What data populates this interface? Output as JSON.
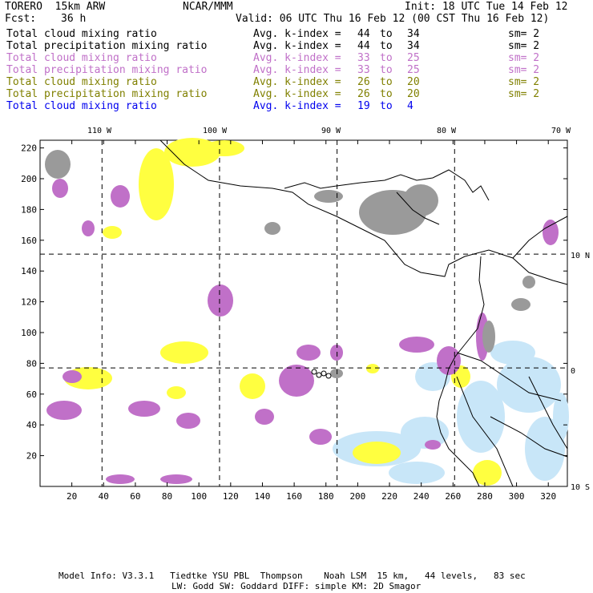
{
  "header": {
    "model": "TORERO  15km ARW",
    "center": "NCAR/MMM",
    "init": "Init: 18 UTC Tue 14 Feb 12",
    "fcst_label": "Fcst:",
    "fcst_value": "36 h",
    "valid": "Valid: 06 UTC Thu 16 Feb 12 (00 CST Thu 16 Feb 12)"
  },
  "legend": [
    {
      "field": "Total cloud mixing ratio",
      "index": "Avg. k-index =",
      "from": "44",
      "to": "to",
      "end": "34",
      "sm": "sm= 2",
      "color": "#000000"
    },
    {
      "field": "Total precipitation mixing ratio",
      "index": "Avg. k-index =",
      "from": "44",
      "to": "to",
      "end": "34",
      "sm": "sm= 2",
      "color": "#000000"
    },
    {
      "field": "Total cloud mixing ratio",
      "index": "Avg. k-index =",
      "from": "33",
      "to": "to",
      "end": "25",
      "sm": "sm= 2",
      "color": "#c070c8"
    },
    {
      "field": "Total precipitation mixing ratio",
      "index": "Avg. k-index =",
      "from": "33",
      "to": "to",
      "end": "25",
      "sm": "sm= 2",
      "color": "#c070c8"
    },
    {
      "field": "Total cloud mixing ratio",
      "index": "Avg. k-index =",
      "from": "26",
      "to": "to",
      "end": "20",
      "sm": "sm= 2",
      "color": "#808000"
    },
    {
      "field": "Total precipitation mixing ratio",
      "index": "Avg. k-index =",
      "from": "26",
      "to": "to",
      "end": "20",
      "sm": "sm= 2",
      "color": "#808000"
    },
    {
      "field": "Total cloud mixing ratio",
      "index": "Avg. k-index =",
      "from": "19",
      "to": "to",
      "end": "4",
      "sm": "",
      "color": "#0000ee"
    }
  ],
  "map": {
    "lon_labels": [
      "110 W",
      "100 W",
      "90 W",
      "80 W",
      "70 W"
    ],
    "lat_labels": [
      "10 N",
      "0",
      "10 S"
    ],
    "x_ticks": [
      "20",
      "40",
      "60",
      "80",
      "100",
      "120",
      "140",
      "160",
      "180",
      "200",
      "220",
      "240",
      "260",
      "280",
      "300",
      "320"
    ],
    "y_ticks": [
      "20",
      "40",
      "60",
      "80",
      "100",
      "120",
      "140",
      "160",
      "180",
      "200",
      "220"
    ],
    "x_range": [
      0,
      332
    ],
    "y_range": [
      0,
      225
    ],
    "meridians_grid_x": [
      39,
      113,
      187,
      261
    ],
    "parallels_grid_y": [
      77,
      151
    ],
    "colors": {
      "upper_level_cloud": "#9a9a9a",
      "mid_level_cloud": "#c070c8",
      "low_mid_cloud": "#ffff40",
      "low_cloud": "#c8e6f8"
    }
  },
  "footer": {
    "line1": "Model Info: V3.3.1   Tiedtke YSU PBL  Thompson    Noah LSM  15 km,   44 levels,   83 sec",
    "line2": "LW: Godd SW: Goddard DIFF: simple KM: 2D Smagor"
  }
}
